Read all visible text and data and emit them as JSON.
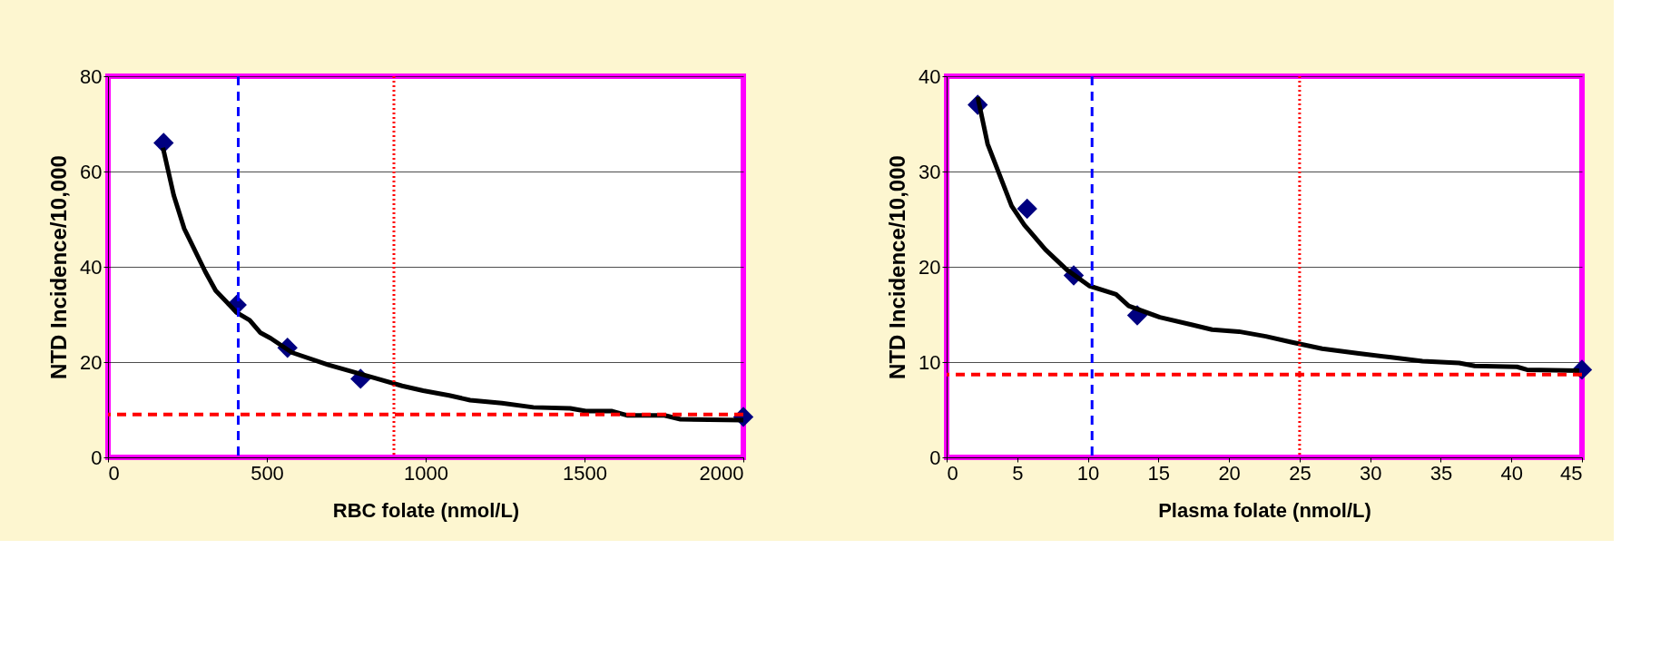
{
  "chart_data": [
    {
      "type": "line",
      "xlabel": "RBC folate (nmol/L)",
      "ylabel": "NTD Incidence/10,000",
      "xlim": [
        0,
        2000
      ],
      "xticks": [
        0,
        500,
        1000,
        1500,
        2000
      ],
      "ylim": [
        0,
        80
      ],
      "yticks": [
        0,
        20,
        40,
        60,
        80
      ],
      "grid": "y",
      "series": [
        {
          "color": "#000000",
          "x": [
            173,
            207,
            240,
            306,
            339,
            405,
            446,
            479,
            512,
            579,
            694,
            843,
            926,
            992,
            1074,
            1140,
            1240,
            1339,
            1455,
            1504,
            1587,
            1636,
            1752,
            1802,
            2000
          ],
          "values": [
            65,
            55,
            48,
            39,
            35,
            30.4,
            28.8,
            26.2,
            25,
            22,
            19.4,
            16.6,
            15,
            14,
            13,
            12,
            11.4,
            10.5,
            10.3,
            9.7,
            9.7,
            8.8,
            8.8,
            8,
            7.8
          ]
        },
        {
          "type": "scatter",
          "color": "#000080",
          "marker": "diamond",
          "x": [
            175,
            405,
            565,
            795,
            2000
          ],
          "values": [
            66,
            32,
            23,
            16.5,
            8.5
          ]
        }
      ],
      "ref_lines": [
        {
          "axis": "x",
          "value": 410,
          "color": "#0000ff",
          "line_style": "dashed"
        },
        {
          "axis": "x",
          "value": 900,
          "color": "#ff0000",
          "line_style": "dotted"
        },
        {
          "axis": "y",
          "value": 9,
          "color": "#ff0000",
          "line_style": "dashed"
        }
      ]
    },
    {
      "type": "line",
      "xlabel": "Plasma folate (nmol/L)",
      "ylabel": "NTD Incidence/10,000",
      "xlim": [
        0,
        45
      ],
      "xticks": [
        0,
        5,
        10,
        15,
        20,
        25,
        30,
        35,
        40,
        45
      ],
      "ylim": [
        0,
        40
      ],
      "yticks": [
        0,
        10,
        20,
        30,
        40
      ],
      "grid": "y",
      "series": [
        {
          "color": "#000000",
          "x": [
            2.2,
            2.9,
            4.6,
            5.5,
            7,
            8.5,
            10.1,
            12,
            12.9,
            15.1,
            17.4,
            18.8,
            20.7,
            22.6,
            24.4,
            26.6,
            29.2,
            31.5,
            33.7,
            36.3,
            37.4,
            40.4,
            41.1,
            44.8
          ],
          "values": [
            37.8,
            32.9,
            26.4,
            24.4,
            21.8,
            19.7,
            18,
            17.1,
            15.9,
            14.7,
            13.9,
            13.4,
            13.2,
            12.7,
            12.1,
            11.4,
            10.9,
            10.5,
            10.1,
            9.9,
            9.6,
            9.5,
            9.2,
            9.1
          ]
        },
        {
          "type": "scatter",
          "color": "#000080",
          "marker": "diamond",
          "x": [
            2.2,
            5.7,
            9,
            13.5,
            45
          ],
          "values": [
            37,
            26.1,
            19.1,
            14.9,
            9.2
          ]
        }
      ],
      "ref_lines": [
        {
          "axis": "x",
          "value": 10.3,
          "color": "#0000ff",
          "line_style": "dashed"
        },
        {
          "axis": "x",
          "value": 25,
          "color": "#ff0000",
          "line_style": "dotted"
        },
        {
          "axis": "y",
          "value": 8.7,
          "color": "#ff0000",
          "line_style": "dashed"
        }
      ]
    }
  ]
}
